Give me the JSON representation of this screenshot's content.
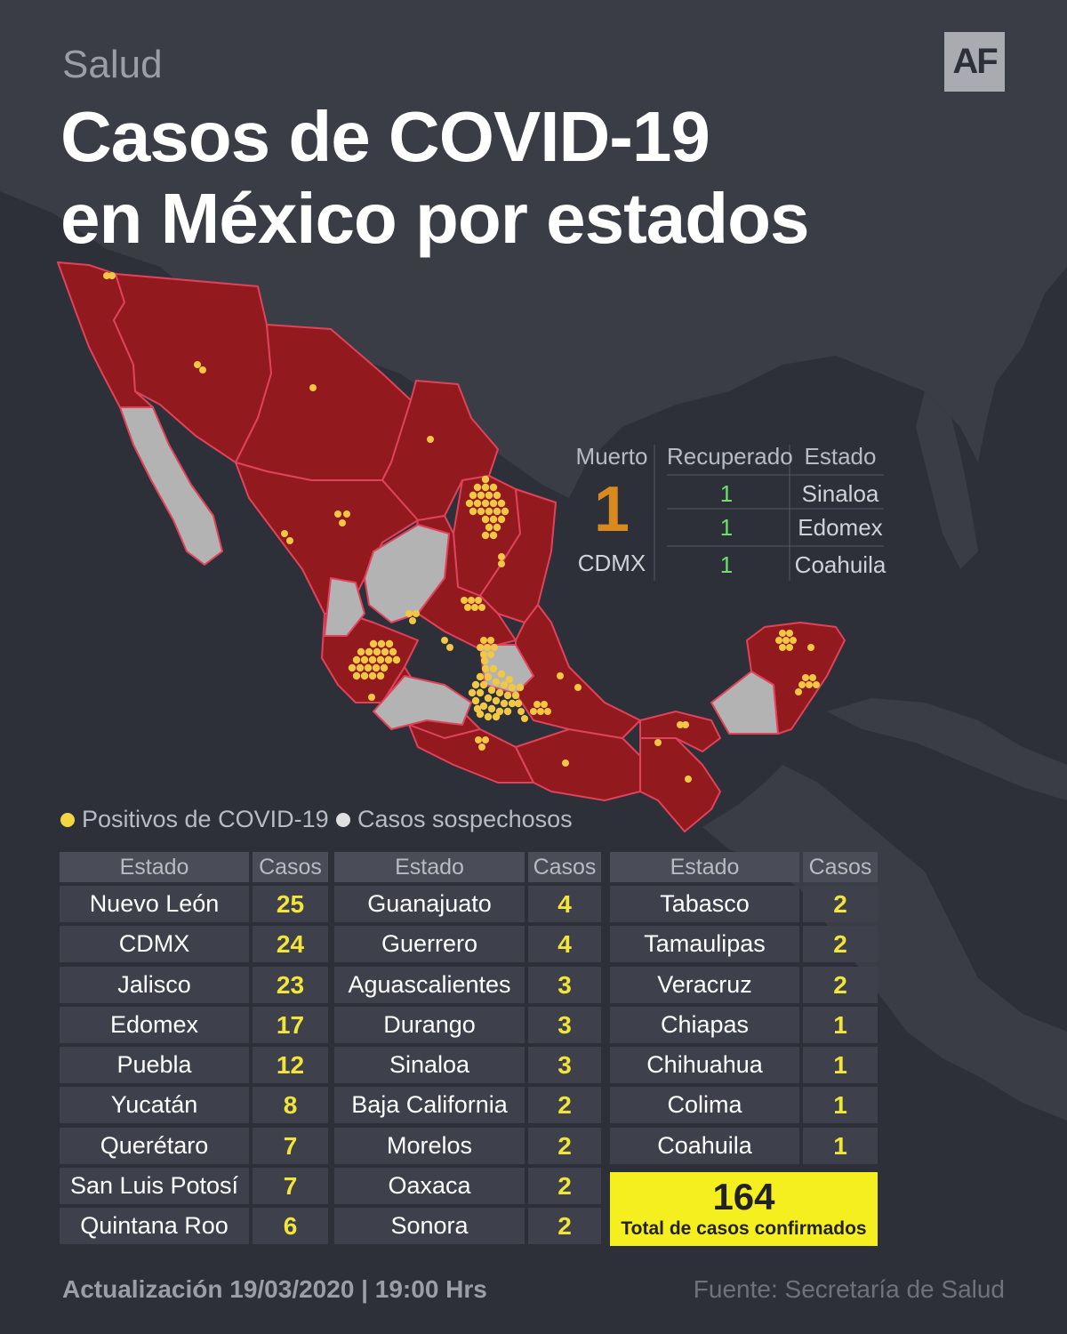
{
  "header": {
    "section": "Salud",
    "logo": "AF",
    "title_line1": "Casos de COVID-19",
    "title_line2": "en México por estados"
  },
  "stats": {
    "muerto_header": "Muerto",
    "muerto_count": "1",
    "muerto_state": "CDMX",
    "recuperado_header": "Recuperado",
    "estado_header": "Estado",
    "recovered": [
      {
        "count": "1",
        "state": "Sinaloa"
      },
      {
        "count": "1",
        "state": "Edomex"
      },
      {
        "count": "1",
        "state": "Coahuila"
      }
    ]
  },
  "legend": {
    "positivos": "Positivos de COVID-19",
    "sospechosos": "Casos sospechosos",
    "positivos_color": "#f2d444",
    "sospechosos_color": "#e0e0e0"
  },
  "colors": {
    "background": "#2d3039",
    "confirmed_state": "#921a1f",
    "suspect_state": "#b3b3b3",
    "state_border": "#e0425a",
    "highlight": "#f6ef20"
  },
  "table": {
    "col_estado": "Estado",
    "col_casos": "Casos",
    "columns": [
      [
        {
          "estado": "Nuevo León",
          "casos": "25"
        },
        {
          "estado": "CDMX",
          "casos": "24"
        },
        {
          "estado": "Jalisco",
          "casos": "23"
        },
        {
          "estado": "Edomex",
          "casos": "17"
        },
        {
          "estado": "Puebla",
          "casos": "12"
        },
        {
          "estado": "Yucatán",
          "casos": "8"
        },
        {
          "estado": "Querétaro",
          "casos": "7"
        },
        {
          "estado": "San Luis Potosí",
          "casos": "7"
        },
        {
          "estado": "Quintana Roo",
          "casos": "6"
        }
      ],
      [
        {
          "estado": "Guanajuato",
          "casos": "4"
        },
        {
          "estado": "Guerrero",
          "casos": "4"
        },
        {
          "estado": "Aguascalientes",
          "casos": "3"
        },
        {
          "estado": "Durango",
          "casos": "3"
        },
        {
          "estado": "Sinaloa",
          "casos": "3"
        },
        {
          "estado": "Baja California",
          "casos": "2"
        },
        {
          "estado": "Morelos",
          "casos": "2"
        },
        {
          "estado": "Oaxaca",
          "casos": "2"
        },
        {
          "estado": "Sonora",
          "casos": "2"
        }
      ],
      [
        {
          "estado": "Tabasco",
          "casos": "2"
        },
        {
          "estado": "Tamaulipas",
          "casos": "2"
        },
        {
          "estado": "Veracruz",
          "casos": "2"
        },
        {
          "estado": "Chiapas",
          "casos": "1"
        },
        {
          "estado": "Chihuahua",
          "casos": "1"
        },
        {
          "estado": "Colima",
          "casos": "1"
        },
        {
          "estado": "Coahuila",
          "casos": "1"
        }
      ]
    ],
    "total_value": "164",
    "total_label": "Total de casos confirmados"
  },
  "footer": {
    "update": "Actualización 19/03/2020 | 19:00 Hrs",
    "source": "Fuente: Secretaría de Salud"
  }
}
